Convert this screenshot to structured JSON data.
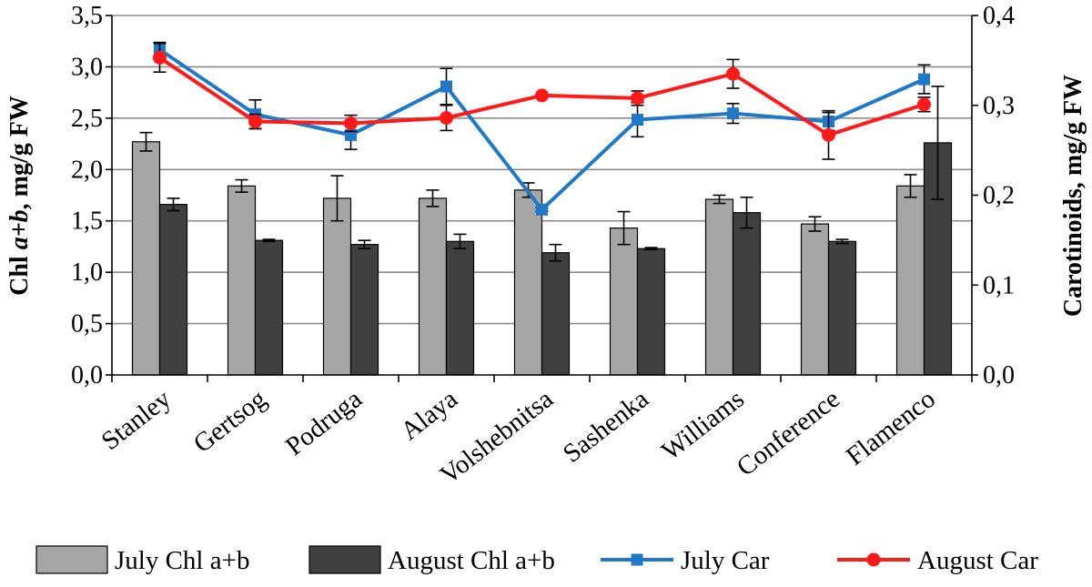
{
  "chart_data": {
    "type": "bar",
    "combo": "bar + line (secondary axis)",
    "categories": [
      "Stanley",
      "Gertsog",
      "Podruga",
      "Alaya",
      "Volshebnitsa",
      "Sashenka",
      "Williams",
      "Conference",
      "Flamenco"
    ],
    "left_axis": {
      "title_prefix": "Chl ",
      "title_italic": "a+b",
      "title_suffix": ", mg/g FW",
      "ylim": [
        0,
        3.5
      ],
      "ticks": [
        "0,0",
        "0,5",
        "1,0",
        "1,5",
        "2,0",
        "2,5",
        "3,0",
        "3,5"
      ],
      "tick_values": [
        0,
        0.5,
        1.0,
        1.5,
        2.0,
        2.5,
        3.0,
        3.5
      ]
    },
    "right_axis": {
      "title": "Carotinoids, mg/g FW",
      "ylim": [
        0,
        0.4
      ],
      "ticks": [
        "0,0",
        "0,1",
        "0,2",
        "0,3",
        "0,4"
      ],
      "tick_values": [
        0,
        0.1,
        0.2,
        0.3,
        0.4
      ]
    },
    "bar_series": [
      {
        "name": "July Chl a+b",
        "color": "#a6a6a6",
        "values": [
          2.27,
          1.84,
          1.72,
          1.72,
          1.8,
          1.43,
          1.71,
          1.47,
          1.84
        ],
        "errors": [
          0.09,
          0.06,
          0.22,
          0.08,
          0.07,
          0.16,
          0.04,
          0.07,
          0.11
        ]
      },
      {
        "name": "August Chl a+b",
        "color": "#404040",
        "values": [
          1.66,
          1.31,
          1.27,
          1.3,
          1.19,
          1.23,
          1.58,
          1.3,
          2.26
        ],
        "errors": [
          0.06,
          0.01,
          0.04,
          0.07,
          0.08,
          0.01,
          0.15,
          0.02,
          0.55
        ]
      }
    ],
    "line_series": [
      {
        "name": "July Car",
        "color": "#1f78c8",
        "marker": "square",
        "axis": "right",
        "values": [
          0.362,
          0.29,
          0.267,
          0.321,
          0.184,
          0.284,
          0.291,
          0.282,
          0.329
        ],
        "errors": [
          0.008,
          0.016,
          0.016,
          0.02,
          0.002,
          0.019,
          0.011,
          0.01,
          0.016
        ]
      },
      {
        "name": "August Car",
        "color": "#ff1a1a",
        "marker": "circle",
        "axis": "right",
        "values": [
          0.353,
          0.282,
          0.28,
          0.286,
          0.311,
          0.308,
          0.335,
          0.267,
          0.301
        ],
        "errors": [
          0.016,
          0.008,
          0.009,
          0.014,
          0.002,
          0.008,
          0.016,
          0.027,
          0.008
        ]
      }
    ],
    "grid": true,
    "legend_position": "bottom"
  }
}
